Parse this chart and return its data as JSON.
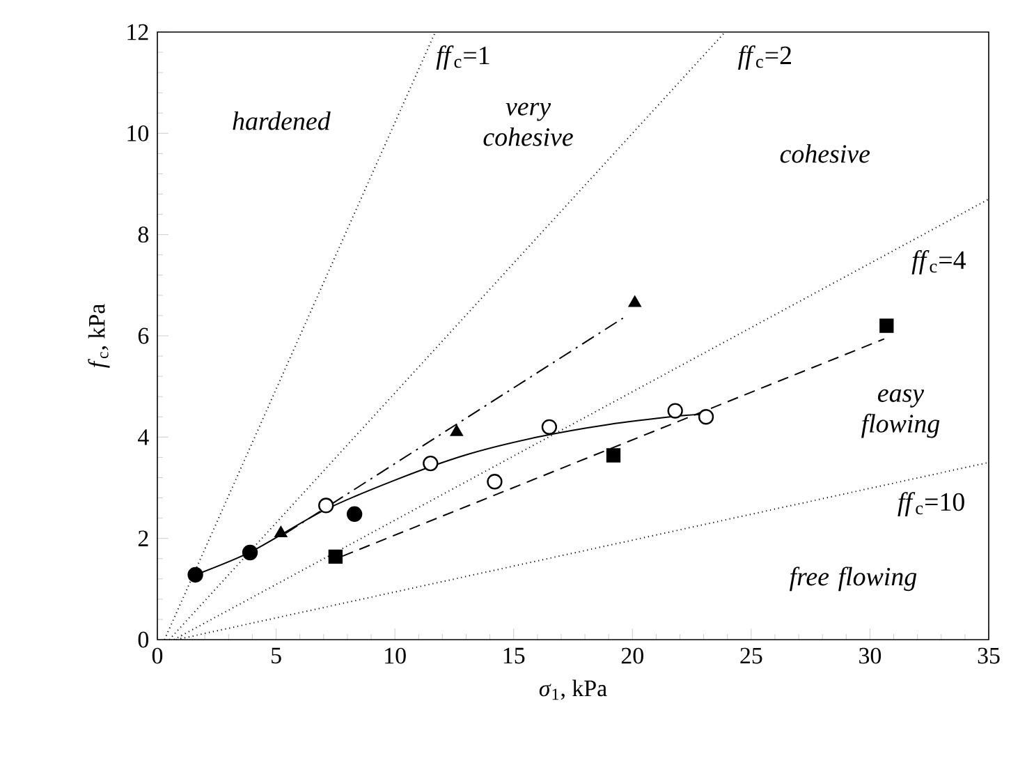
{
  "chart_data": {
    "type": "scatter",
    "xlabel": "*σ*$_{1}$, kPa",
    "ylabel": "*f*$_{c}$, kPa",
    "xlim": [
      0,
      35
    ],
    "ylim": [
      0,
      12
    ],
    "xticks": [
      0,
      5,
      10,
      15,
      20,
      25,
      30,
      35
    ],
    "yticks": [
      0,
      2,
      4,
      6,
      8,
      10,
      12
    ],
    "grid": false,
    "series": [
      {
        "type": "line",
        "color": "#000000",
        "line_style": "dotted",
        "marker": "none",
        "x": [
          0.3,
          11.7
        ],
        "values": [
          0,
          12
        ]
      },
      {
        "type": "line",
        "color": "#000000",
        "line_style": "dotted",
        "marker": "none",
        "x": [
          0.5,
          23.9
        ],
        "values": [
          0,
          12
        ]
      },
      {
        "type": "line",
        "color": "#000000",
        "line_style": "dotted",
        "marker": "none",
        "x": [
          0.7,
          35
        ],
        "values": [
          0,
          8.7
        ]
      },
      {
        "type": "line",
        "color": "#000000",
        "line_style": "dotted",
        "marker": "none",
        "x": [
          0.8,
          35
        ],
        "values": [
          0,
          3.5
        ]
      },
      {
        "type": "line",
        "color": "#000000",
        "line_style": "solid",
        "marker": "none",
        "x": [
          1.6,
          4,
          7,
          10,
          13,
          16,
          19,
          22,
          23
        ],
        "values": [
          1.28,
          1.75,
          2.55,
          3.15,
          3.65,
          4.0,
          4.25,
          4.42,
          4.45
        ]
      },
      {
        "type": "line",
        "color": "#000000",
        "line_style": "dashdot",
        "marker": "none",
        "x": [
          5.4,
          19.6
        ],
        "values": [
          2.1,
          6.35
        ]
      },
      {
        "type": "line",
        "color": "#000000",
        "line_style": "dashed",
        "marker": "none",
        "x": [
          7.8,
          30.6
        ],
        "values": [
          1.65,
          5.94
        ]
      },
      {
        "color": "#000000",
        "marker": "circle",
        "x": [
          1.6,
          3.9,
          8.3
        ],
        "values": [
          1.28,
          1.72,
          2.48
        ]
      },
      {
        "color": "#000000",
        "marker": "triangle",
        "x": [
          5.2,
          12.6,
          20.1
        ],
        "values": [
          2.1,
          4.1,
          6.65
        ]
      },
      {
        "color": "#ffffff",
        "marker": "circle",
        "x": [
          7.1,
          11.5,
          16.5,
          23.1
        ],
        "values": [
          2.65,
          3.48,
          4.2,
          4.4
        ]
      },
      {
        "color": "#ffffff",
        "marker": "circle",
        "x": [
          14.2,
          21.8
        ],
        "values": [
          3.12,
          4.52
        ]
      },
      {
        "color": "#000000",
        "marker": "square",
        "x": [
          7.5,
          19.2,
          30.7
        ],
        "values": [
          1.64,
          3.64,
          6.2
        ]
      }
    ],
    "annotations": [
      "*ff*$_{c}$=1",
      "*ff*$_{c}$=2",
      "*ff*$_{c}$=4",
      "*ff*$_{c}$=10",
      "*hardened*",
      "*very cohesive*",
      "*cohesive*",
      "*easy flowing*",
      "*free flowing*"
    ]
  }
}
